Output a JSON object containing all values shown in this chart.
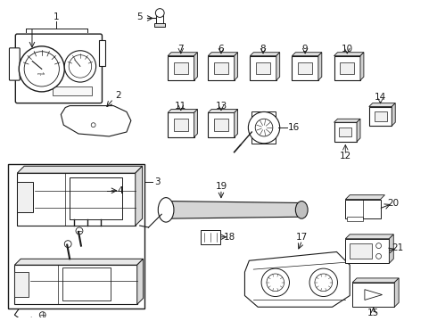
{
  "bg_color": "#ffffff",
  "line_color": "#1a1a1a",
  "gray_color": "#888888",
  "light_gray": "#cccccc",
  "fs": 7.5,
  "fig_w": 4.9,
  "fig_h": 3.6,
  "dpi": 100
}
